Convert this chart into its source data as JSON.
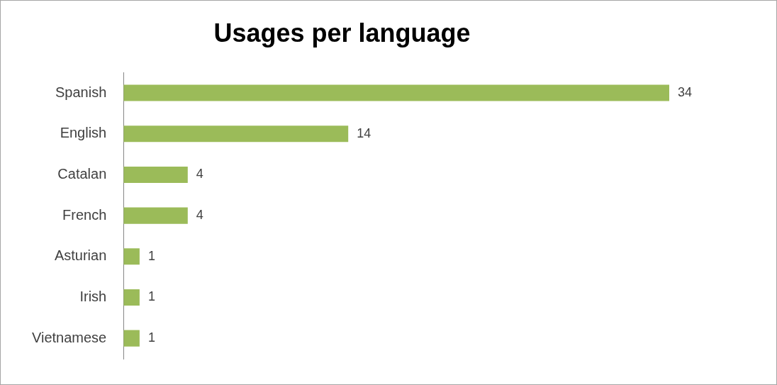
{
  "chart_data": {
    "type": "bar",
    "orientation": "horizontal",
    "title": "Usages per language",
    "categories": [
      "Spanish",
      "English",
      "Catalan",
      "French",
      "Asturian",
      "Irish",
      "Vietnamese"
    ],
    "values": [
      34,
      14,
      4,
      4,
      1,
      1,
      1
    ],
    "color": "#9bbb59",
    "data_labels": true
  }
}
